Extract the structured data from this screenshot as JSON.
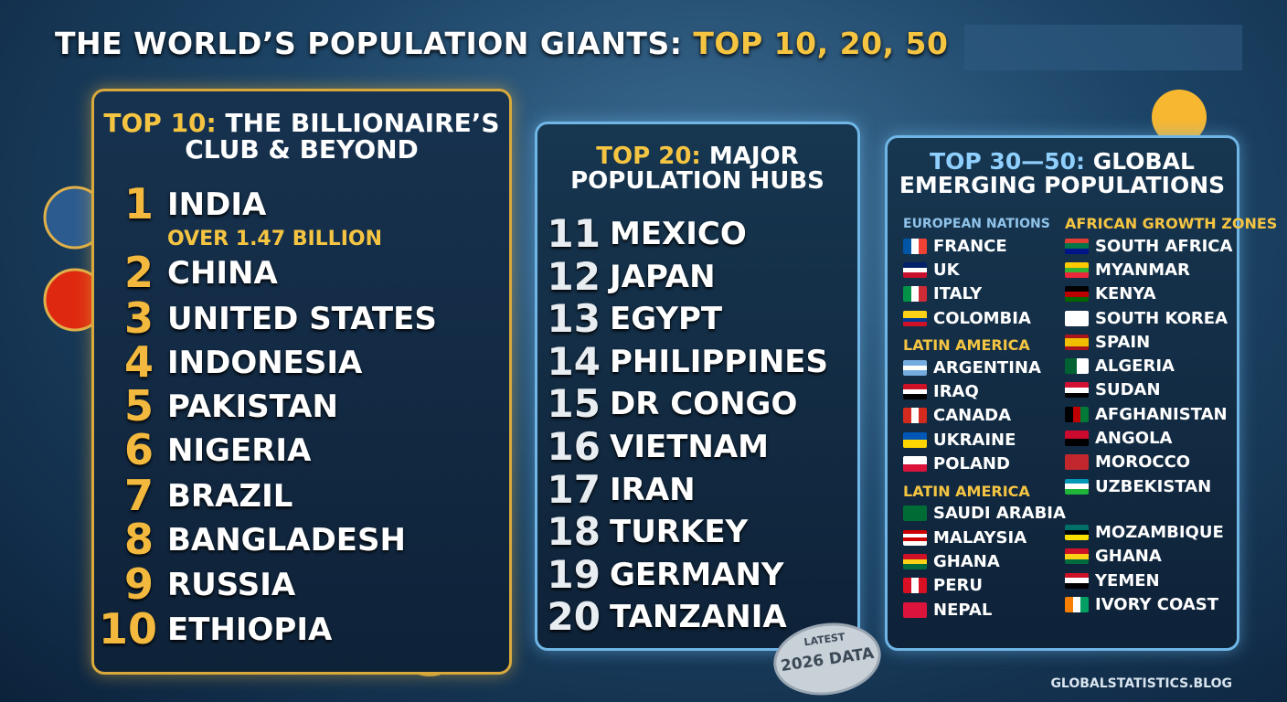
{
  "header": {
    "title": "THE WORLD’S POPULATION GIANTS:",
    "highlight": "TOP 10, 20, 50"
  },
  "panels": [
    {
      "label": "TOP 10:",
      "title": "THE BILLIONAIRE’S CLUB & BEYOND",
      "items": [
        {
          "rank": 1,
          "name": "INDIA",
          "note": "OVER 1.47 BILLION"
        },
        {
          "rank": 2,
          "name": "CHINA"
        },
        {
          "rank": 3,
          "name": "UNITED STATES"
        },
        {
          "rank": 4,
          "name": "INDONESIA"
        },
        {
          "rank": 5,
          "name": "PAKISTAN"
        },
        {
          "rank": 6,
          "name": "NIGERIA"
        },
        {
          "rank": 7,
          "name": "BRAZIL"
        },
        {
          "rank": 8,
          "name": "BANGLADESH"
        },
        {
          "rank": 9,
          "name": "RUSSIA"
        },
        {
          "rank": 10,
          "name": "ETHIOPIA"
        }
      ]
    },
    {
      "label": "TOP 20:",
      "title": "MAJOR POPULATION HUBS",
      "items": [
        {
          "rank": 11,
          "name": "MEXICO"
        },
        {
          "rank": 12,
          "name": "JAPAN"
        },
        {
          "rank": 13,
          "name": "EGYPT"
        },
        {
          "rank": 14,
          "name": "PHILIPPINES"
        },
        {
          "rank": 15,
          "name": "DR CONGO"
        },
        {
          "rank": 16,
          "name": "VIETNAM"
        },
        {
          "rank": 17,
          "name": "IRAN"
        },
        {
          "rank": 18,
          "name": "TURKEY"
        },
        {
          "rank": 19,
          "name": "GERMANY"
        },
        {
          "rank": 20,
          "name": "TANZANIA"
        }
      ]
    }
  ],
  "emerging": {
    "label": "TOP 30—50:",
    "title": "GLOBAL EMERGING POPULATIONS",
    "columns": [
      {
        "groups": [
          {
            "heading": "EUROPEAN NATIONS",
            "items": [
              {
                "name": "FRANCE",
                "flag": [
                  "#0055a4",
                  "#ffffff",
                  "#ef4135"
                ],
                "flag_vertical": true
              },
              {
                "name": "UK",
                "flag": [
                  "#012169",
                  "#ffffff",
                  "#c8102e"
                ]
              },
              {
                "name": "ITALY",
                "flag": [
                  "#009246",
                  "#ffffff",
                  "#ce2b37"
                ],
                "flag_vertical": true
              },
              {
                "name": "COLOMBIA",
                "flag": [
                  "#fcd116",
                  "#fcd116",
                  "#003893",
                  "#ce1126"
                ]
              }
            ]
          },
          {
            "heading": "LATIN AMERICA",
            "items": [
              {
                "name": "ARGENTINA",
                "flag": [
                  "#74acdf",
                  "#ffffff",
                  "#74acdf"
                ]
              },
              {
                "name": "IRAQ",
                "flag": [
                  "#ce1126",
                  "#ffffff",
                  "#000000"
                ]
              },
              {
                "name": "CANADA",
                "flag": [
                  "#d52b1e",
                  "#ffffff",
                  "#d52b1e"
                ],
                "flag_vertical": true
              },
              {
                "name": "UKRAINE",
                "flag": [
                  "#0057b7",
                  "#ffd700"
                ]
              },
              {
                "name": "POLAND",
                "flag": [
                  "#ffffff",
                  "#dc143c"
                ]
              }
            ]
          },
          {
            "heading": "LATIN AMERICA",
            "items": [
              {
                "name": "SAUDI ARABIA",
                "flag": [
                  "#006c35"
                ]
              },
              {
                "name": "MALAYSIA",
                "flag": [
                  "#cc0001",
                  "#ffffff",
                  "#cc0001",
                  "#ffffff"
                ]
              },
              {
                "name": "GHANA",
                "flag": [
                  "#ce1126",
                  "#fcd116",
                  "#006b3f"
                ]
              },
              {
                "name": "PERU",
                "flag": [
                  "#d91023",
                  "#ffffff",
                  "#d91023"
                ],
                "flag_vertical": true
              },
              {
                "name": "NEPAL",
                "flag": [
                  "#dc143c"
                ]
              }
            ]
          }
        ]
      },
      {
        "groups": [
          {
            "heading": "AFRICAN GROWTH ZONES",
            "items": [
              {
                "name": "SOUTH AFRICA",
                "flag": [
                  "#e03c31",
                  "#007749",
                  "#001489"
                ]
              },
              {
                "name": "MYANMAR",
                "flag": [
                  "#fecb00",
                  "#34b233",
                  "#ea2839"
                ]
              },
              {
                "name": "KENYA",
                "flag": [
                  "#000000",
                  "#bb0000",
                  "#006600"
                ]
              },
              {
                "name": "SOUTH KOREA",
                "flag": [
                  "#ffffff"
                ]
              },
              {
                "name": "SPAIN",
                "flag": [
                  "#aa151b",
                  "#f1bf00",
                  "#f1bf00",
                  "#aa151b"
                ]
              },
              {
                "name": "ALGERIA",
                "flag": [
                  "#006233",
                  "#ffffff"
                ],
                "flag_vertical": true
              },
              {
                "name": "SUDAN",
                "flag": [
                  "#d21034",
                  "#ffffff",
                  "#000000"
                ]
              },
              {
                "name": "AFGHANISTAN",
                "flag": [
                  "#000000",
                  "#be0000",
                  "#007a36"
                ],
                "flag_vertical": true
              },
              {
                "name": "ANGOLA",
                "flag": [
                  "#cc092f",
                  "#000000"
                ]
              },
              {
                "name": "MOROCCO",
                "flag": [
                  "#c1272d"
                ]
              },
              {
                "name": "UZBEKISTAN",
                "flag": [
                  "#0099b5",
                  "#ffffff",
                  "#1eb53a"
                ]
              }
            ]
          },
          {
            "items": [
              {
                "name": "MOZAMBIQUE",
                "flag": [
                  "#007168",
                  "#000000",
                  "#fce100"
                ]
              },
              {
                "name": "GHANA",
                "flag": [
                  "#ce1126",
                  "#fcd116",
                  "#006b3f"
                ]
              },
              {
                "name": "YEMEN",
                "flag": [
                  "#ce1126",
                  "#ffffff",
                  "#000000"
                ]
              },
              {
                "name": "IVORY COAST",
                "flag": [
                  "#f77f00",
                  "#ffffff",
                  "#009e60"
                ],
                "flag_vertical": true
              }
            ]
          }
        ]
      }
    ]
  },
  "badge": {
    "top": "LATEST",
    "main": "2026 DATA"
  },
  "footer": "GLOBALSTATISTICS.BLOG"
}
